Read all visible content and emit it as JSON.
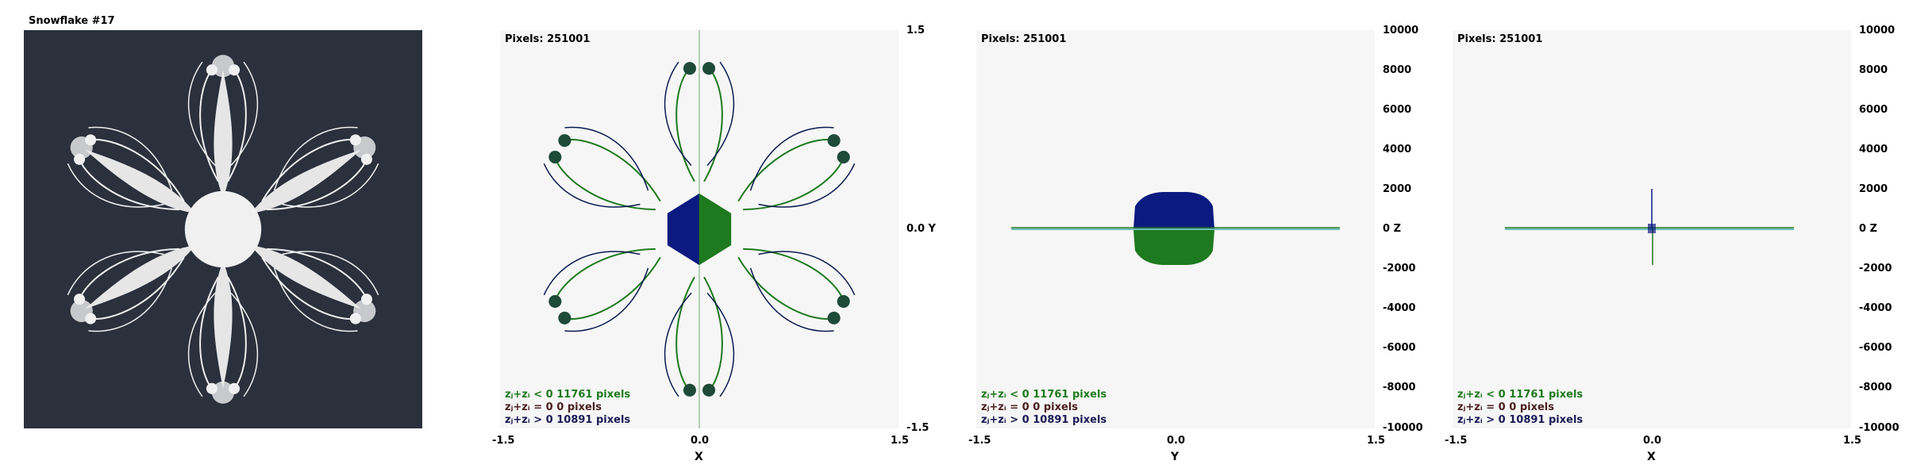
{
  "title": "Snowflake #17",
  "panels": [
    {
      "id": "xy",
      "pixels": "Pixels: 251001",
      "legend": [
        "zⱼ+zᵢ < 0  11761 pixels",
        "zⱼ+zᵢ = 0  0 pixels",
        "zⱼ+zᵢ > 0  10891 pixels"
      ],
      "xticks": [
        "-1.5",
        "0.0",
        "1.5"
      ],
      "xname": "X",
      "rticks": [
        "1.5",
        "0.0  Y",
        "-1.5"
      ]
    },
    {
      "id": "yz",
      "pixels": "Pixels: 251001",
      "legend": [
        "zⱼ+zᵢ < 0  11761 pixels",
        "zⱼ+zᵢ = 0  0 pixels",
        "zⱼ+zᵢ > 0  10891 pixels"
      ],
      "xticks": [
        "-1.5",
        "0.0",
        "1.5"
      ],
      "xname": "Y",
      "rticks": [
        "10000",
        "8000",
        "6000",
        "4000",
        "2000",
        "0   Z",
        "-2000",
        "-4000",
        "-6000",
        "-8000",
        "-10000"
      ]
    },
    {
      "id": "xz",
      "pixels": "Pixels: 251001",
      "legend": [
        "zⱼ+zᵢ < 0  11761 pixels",
        "zⱼ+zᵢ = 0  0 pixels",
        "zⱼ+zᵢ > 0  10891 pixels"
      ],
      "xticks": [
        "-1.5",
        "0.0",
        "1.5"
      ],
      "xname": "X",
      "rticks": [
        "10000",
        "8000",
        "6000",
        "4000",
        "2000",
        "0   Z",
        "-2000",
        "-4000",
        "-6000",
        "-8000",
        "-10000"
      ]
    }
  ],
  "colors": {
    "background": "#2a303c",
    "fractal": "#f0f0f0",
    "negative": "#1e7a1e",
    "positive": "#0a1a80",
    "plot_bg": "#f6f6f6"
  }
}
